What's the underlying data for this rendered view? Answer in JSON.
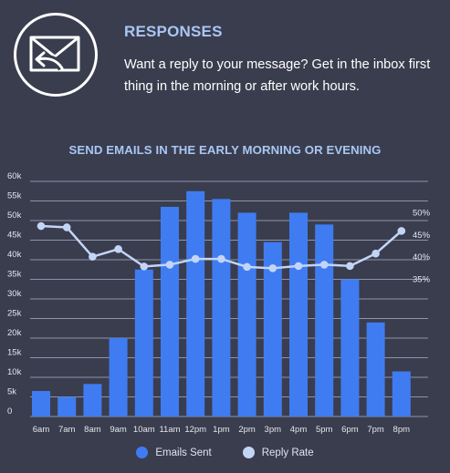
{
  "header": {
    "title": "RESPONSES",
    "description": "Want a reply to your message? Get in the inbox first thing in the morning or after work hours.",
    "icon": "envelope-reply-icon"
  },
  "colors": {
    "background": "#3a3d4e",
    "accent": "#a9c6f4",
    "bars": "#3f7cf2",
    "line": "#c3d5f7",
    "grid": "#8e93a8"
  },
  "chart_data": {
    "type": "bar",
    "title": "SEND EMAILS IN THE EARLY MORNING OR EVENING",
    "categories": [
      "6am",
      "7am",
      "8am",
      "9am",
      "10am",
      "11am",
      "12pm",
      "1pm",
      "2pm",
      "3pm",
      "4pm",
      "5pm",
      "6pm",
      "7pm",
      "8pm"
    ],
    "series": [
      {
        "name": "Emails Sent",
        "type": "bar",
        "axis": "left",
        "values": [
          6500,
          5000,
          8300,
          20000,
          37500,
          53500,
          57500,
          55500,
          52000,
          44500,
          52000,
          49000,
          35000,
          24000,
          11500
        ]
      },
      {
        "name": "Reply Rate",
        "type": "line",
        "axis": "right",
        "values": [
          47.0,
          46.7,
          40.1,
          41.8,
          37.9,
          38.3,
          39.6,
          39.6,
          37.8,
          37.5,
          38.0,
          38.3,
          38.0,
          40.8,
          45.9
        ]
      }
    ],
    "y_left": {
      "ylim": [
        0,
        60000
      ],
      "ticks": [
        0,
        5000,
        10000,
        15000,
        20000,
        25000,
        30000,
        35000,
        40000,
        45000,
        50000,
        55000,
        60000
      ],
      "tick_labels": [
        "0",
        "5k",
        "10k",
        "15k",
        "20k",
        "25k",
        "30k",
        "35k",
        "40k",
        "45k",
        "50k",
        "55k",
        "60k"
      ]
    },
    "y_right": {
      "ticks": [
        35,
        40,
        45,
        50
      ],
      "tick_labels": [
        "35%",
        "40%",
        "45%",
        "50%"
      ]
    },
    "grid": true,
    "legend": {
      "position": "bottom-center",
      "entries": [
        "Emails Sent",
        "Reply Rate"
      ]
    }
  }
}
